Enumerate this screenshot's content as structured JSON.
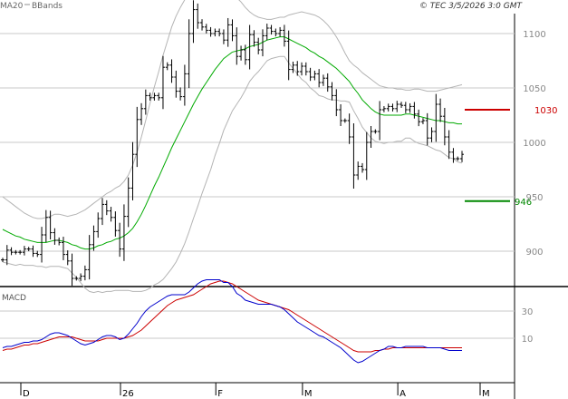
{
  "header": {
    "legend": [
      {
        "label": "MA20",
        "color": "#00aa00"
      },
      {
        "label": "BBands",
        "color": "#b4b4b4"
      }
    ],
    "source_text": "© TEC 3/5/2026 3:0 GMT"
  },
  "macd": {
    "label": "MACD",
    "macd_color": "#0000cc",
    "signal_color": "#cc0000",
    "y_ticks": [
      {
        "value": 30,
        "label": "30"
      },
      {
        "value": 10,
        "label": "10"
      }
    ]
  },
  "levels": [
    {
      "value": 1030,
      "label": "1030",
      "color": "#cc0000"
    },
    {
      "value": 946,
      "label": "946",
      "color": "#008800"
    }
  ],
  "x_labels": [
    {
      "i": 0,
      "label": "D"
    },
    {
      "i": 23,
      "label": "26"
    },
    {
      "i": 45,
      "label": "F"
    },
    {
      "i": 65,
      "label": "M"
    },
    {
      "i": 87,
      "label": "A"
    },
    {
      "i": 106,
      "label": "M"
    }
  ],
  "chart_data": {
    "type": "line",
    "title": "",
    "xlabel": "",
    "ylabel": "",
    "ylim": [
      845,
      1150
    ],
    "y_ticks": [
      900,
      950,
      1000,
      1050,
      1100
    ],
    "grid": true,
    "series": [
      {
        "name": "Price",
        "values": [
          892,
          901,
          899,
          899,
          899,
          902,
          902,
          898,
          897,
          915,
          931,
          917,
          910,
          908,
          897,
          891,
          875,
          875,
          877,
          883,
          906,
          918,
          930,
          943,
          937,
          931,
          919,
          902,
          932,
          958,
          989,
          1021,
          1031,
          1043,
          1041,
          1043,
          1041,
          1069,
          1071,
          1060,
          1047,
          1042,
          1063,
          1100,
          1122,
          1110,
          1106,
          1103,
          1100,
          1102,
          1100,
          1094,
          1108,
          1098,
          1079,
          1085,
          1076,
          1099,
          1092,
          1085,
          1098,
          1105,
          1102,
          1100,
          1103,
          1093,
          1067,
          1071,
          1065,
          1070,
          1065,
          1060,
          1063,
          1055,
          1059,
          1051,
          1043,
          1030,
          1020,
          1020,
          1005,
          970,
          978,
          975,
          1000,
          1010,
          1010,
          1030,
          1031,
          1033,
          1031,
          1035,
          1034,
          1030,
          1033,
          1026,
          1019,
          1020,
          1004,
          1010,
          1035,
          1024,
          1005,
          991,
          985,
          985,
          989
        ]
      },
      {
        "name": "MA20",
        "values": [
          920,
          918,
          916,
          914,
          913,
          911,
          910,
          909,
          908,
          908,
          908,
          909,
          910,
          910,
          909,
          908,
          906,
          905,
          903,
          902,
          902,
          903,
          905,
          906,
          908,
          909,
          911,
          912,
          914,
          917,
          921,
          927,
          934,
          942,
          951,
          960,
          968,
          977,
          986,
          995,
          1003,
          1011,
          1019,
          1027,
          1035,
          1042,
          1049,
          1055,
          1061,
          1067,
          1072,
          1077,
          1080,
          1083,
          1084,
          1085,
          1086,
          1088,
          1089,
          1090,
          1092,
          1094,
          1095,
          1096,
          1097,
          1097,
          1095,
          1093,
          1091,
          1089,
          1087,
          1084,
          1082,
          1079,
          1077,
          1074,
          1071,
          1068,
          1064,
          1060,
          1056,
          1050,
          1045,
          1039,
          1035,
          1031,
          1028,
          1026,
          1025,
          1025,
          1025,
          1025,
          1025,
          1026,
          1026,
          1025,
          1024,
          1023,
          1022,
          1021,
          1020,
          1020,
          1019,
          1018,
          1018,
          1017,
          1017
        ]
      },
      {
        "name": "BBands upper",
        "values": [
          950,
          947,
          944,
          941,
          938,
          935,
          933,
          931,
          930,
          930,
          931,
          932,
          934,
          934,
          933,
          932,
          933,
          934,
          936,
          938,
          941,
          944,
          947,
          950,
          953,
          955,
          958,
          960,
          964,
          970,
          979,
          991,
          1005,
          1020,
          1036,
          1051,
          1065,
          1080,
          1093,
          1106,
          1116,
          1124,
          1131,
          1136,
          1140,
          1143,
          1145,
          1146,
          1147,
          1146,
          1145,
          1143,
          1140,
          1137,
          1133,
          1129,
          1124,
          1120,
          1117,
          1115,
          1114,
          1113,
          1113,
          1114,
          1115,
          1115,
          1117,
          1118,
          1119,
          1120,
          1119,
          1118,
          1117,
          1115,
          1112,
          1108,
          1103,
          1097,
          1090,
          1082,
          1075,
          1071,
          1068,
          1064,
          1061,
          1058,
          1055,
          1052,
          1051,
          1050,
          1050,
          1049,
          1049,
          1048,
          1048,
          1049,
          1049,
          1048,
          1047,
          1047,
          1047,
          1048,
          1049,
          1050,
          1051,
          1052,
          1053
        ]
      },
      {
        "name": "BBands lower",
        "values": [
          890,
          889,
          888,
          887,
          888,
          887,
          887,
          887,
          886,
          886,
          885,
          886,
          886,
          886,
          885,
          884,
          880,
          876,
          871,
          866,
          863,
          862,
          863,
          862,
          863,
          863,
          864,
          864,
          864,
          864,
          863,
          863,
          863,
          864,
          866,
          869,
          871,
          874,
          879,
          884,
          890,
          898,
          907,
          918,
          930,
          941,
          953,
          964,
          975,
          988,
          999,
          1011,
          1020,
          1029,
          1035,
          1041,
          1048,
          1056,
          1061,
          1065,
          1070,
          1075,
          1077,
          1078,
          1079,
          1079,
          1073,
          1068,
          1063,
          1058,
          1055,
          1050,
          1047,
          1043,
          1042,
          1040,
          1039,
          1039,
          1038,
          1038,
          1037,
          1029,
          1022,
          1014,
          1009,
          1004,
          1001,
          1000,
          999,
          1000,
          1000,
          1001,
          1001,
          1004,
          1004,
          1001,
          999,
          998,
          997,
          995,
          993,
          992,
          989,
          986,
          985,
          982,
          981
        ]
      },
      {
        "name": "MACD",
        "values": [
          3,
          4,
          4,
          5,
          6,
          7,
          7,
          8,
          8,
          9,
          11,
          13,
          14,
          14,
          13,
          12,
          10,
          8,
          6,
          5,
          6,
          7,
          9,
          11,
          12,
          12,
          11,
          9,
          10,
          13,
          17,
          21,
          26,
          30,
          33,
          35,
          37,
          39,
          41,
          42,
          42,
          42,
          42,
          44,
          47,
          50,
          52,
          53,
          53,
          53,
          53,
          51,
          51,
          48,
          43,
          41,
          38,
          37,
          36,
          35,
          35,
          35,
          35,
          34,
          33,
          31,
          28,
          25,
          22,
          20,
          18,
          16,
          14,
          12,
          11,
          9,
          7,
          5,
          3,
          0,
          -3,
          -6,
          -8,
          -7,
          -5,
          -3,
          -1,
          1,
          2,
          4,
          4,
          3,
          3,
          4,
          4,
          4,
          4,
          4,
          3,
          3,
          3,
          3,
          2,
          1,
          1,
          1,
          1
        ]
      },
      {
        "name": "Signal",
        "values": [
          1,
          2,
          2,
          3,
          4,
          5,
          5,
          6,
          6,
          7,
          8,
          9,
          10,
          11,
          11,
          11,
          11,
          10,
          9,
          8,
          8,
          8,
          8,
          9,
          10,
          10,
          10,
          10,
          10,
          11,
          12,
          14,
          16,
          19,
          22,
          25,
          28,
          31,
          34,
          36,
          38,
          39,
          40,
          41,
          42,
          44,
          46,
          48,
          50,
          51,
          52,
          52,
          51,
          50,
          48,
          46,
          44,
          42,
          40,
          38,
          37,
          36,
          35,
          34,
          33,
          32,
          31,
          29,
          27,
          25,
          23,
          21,
          19,
          17,
          15,
          13,
          11,
          9,
          7,
          5,
          3,
          1,
          0,
          0,
          0,
          0,
          1,
          1,
          2,
          2,
          3,
          3,
          3,
          3,
          3,
          3,
          3,
          3,
          3,
          3,
          3,
          3,
          3,
          3,
          3,
          3,
          3
        ]
      }
    ]
  }
}
